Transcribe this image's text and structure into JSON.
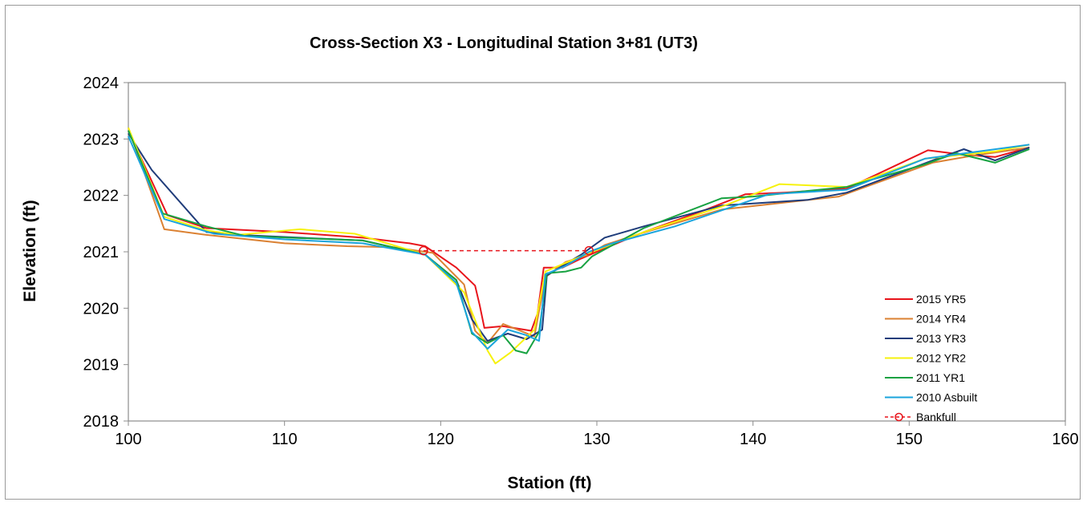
{
  "chart_data": {
    "type": "line",
    "title": "Cross-Section X3 - Longitudinal Station 3+81 (UT3)",
    "xlabel": "Station (ft)",
    "ylabel": "Elevation (ft)",
    "xlim": [
      100,
      160
    ],
    "ylim": [
      2018,
      2024
    ],
    "xticks": [
      "100",
      "110",
      "120",
      "130",
      "140",
      "150",
      "160"
    ],
    "yticks": [
      "2018",
      "2019",
      "2020",
      "2021",
      "2022",
      "2023",
      "2024"
    ],
    "grid": false,
    "legend_position": "bottom-right",
    "series": [
      {
        "name": "2015 YR5",
        "color": "#e8141b",
        "dash": false,
        "x": [
          100,
          102.5,
          105,
          110,
          115,
          118,
          119,
          121,
          122.2,
          122.5,
          122.8,
          124,
          125.8,
          126.2,
          126.6,
          127.8,
          129,
          130,
          133,
          137,
          139.5,
          142,
          146,
          151.2,
          153.5,
          155.5,
          157.7
        ],
        "y": [
          2023.15,
          2021.65,
          2021.42,
          2021.35,
          2021.25,
          2021.15,
          2021.1,
          2020.72,
          2020.4,
          2020.05,
          2019.65,
          2019.68,
          2019.6,
          2019.9,
          2020.72,
          2020.72,
          2020.88,
          2021.0,
          2021.35,
          2021.75,
          2022.02,
          2022.05,
          2022.12,
          2022.8,
          2022.72,
          2022.68,
          2022.85
        ]
      },
      {
        "name": "2014 YR4",
        "color": "#db8132",
        "dash": false,
        "x": [
          100,
          102.3,
          105,
          110,
          114,
          117,
          119.5,
          121.5,
          122.2,
          123,
          124,
          126,
          126.7,
          128,
          129.5,
          130.5,
          132.5,
          138,
          145.5,
          151.5,
          154,
          157.7
        ],
        "y": [
          2023.2,
          2021.4,
          2021.3,
          2021.15,
          2021.1,
          2021.08,
          2020.98,
          2020.42,
          2019.6,
          2019.38,
          2019.72,
          2019.5,
          2020.55,
          2020.82,
          2020.95,
          2021.12,
          2021.3,
          2021.75,
          2021.98,
          2022.58,
          2022.7,
          2022.85
        ]
      },
      {
        "name": "2013 YR3",
        "color": "#1f3c7a",
        "dash": false,
        "x": [
          100,
          101.5,
          105,
          107,
          115,
          119,
          121,
          122,
          123,
          124.3,
          125.5,
          126.5,
          126.8,
          129,
          130.5,
          133,
          138,
          143.5,
          146,
          151.5,
          153.5,
          155.5,
          157.7
        ],
        "y": [
          2023.1,
          2022.45,
          2021.35,
          2021.3,
          2021.2,
          2020.95,
          2020.5,
          2019.8,
          2019.42,
          2019.55,
          2019.45,
          2019.62,
          2020.58,
          2020.95,
          2021.25,
          2021.45,
          2021.82,
          2021.92,
          2022.05,
          2022.62,
          2022.82,
          2022.62,
          2022.85
        ]
      },
      {
        "name": "2012 YR2",
        "color": "#f6f20d",
        "dash": false,
        "x": [
          100,
          102.3,
          105,
          107,
          111,
          114.5,
          119,
          121.5,
          122.3,
          123,
          123.5,
          124.5,
          126,
          126.7,
          129.5,
          133,
          138,
          141.7,
          146,
          151,
          155.5,
          157.7
        ],
        "y": [
          2023.2,
          2021.62,
          2021.38,
          2021.3,
          2021.4,
          2021.32,
          2020.95,
          2020.28,
          2019.72,
          2019.25,
          2019.02,
          2019.22,
          2019.62,
          2020.65,
          2020.98,
          2021.35,
          2021.8,
          2022.2,
          2022.15,
          2022.65,
          2022.78,
          2022.9
        ]
      },
      {
        "name": "2011 YR1",
        "color": "#17a241",
        "dash": false,
        "x": [
          100,
          102.2,
          105,
          107.5,
          115,
          119,
          121,
          122,
          123,
          124,
          124.8,
          125.5,
          126.3,
          126.8,
          128,
          129,
          129.7,
          133,
          138,
          140,
          146,
          151,
          153,
          155.5,
          157.7
        ],
        "y": [
          2023.15,
          2021.68,
          2021.45,
          2021.28,
          2021.2,
          2020.95,
          2020.5,
          2019.55,
          2019.38,
          2019.52,
          2019.25,
          2019.2,
          2019.58,
          2020.62,
          2020.65,
          2020.72,
          2020.92,
          2021.42,
          2021.95,
          2021.98,
          2022.15,
          2022.55,
          2022.75,
          2022.58,
          2022.82
        ]
      },
      {
        "name": "2010 Asbuilt",
        "color": "#1aa4dc",
        "dash": false,
        "x": [
          100,
          102.3,
          105.5,
          110,
          115,
          119,
          121,
          122,
          123,
          124.3,
          125.5,
          126.3,
          126.7,
          128,
          129.5,
          131,
          135,
          141,
          146,
          151,
          157.7
        ],
        "y": [
          2023.05,
          2021.58,
          2021.32,
          2021.22,
          2021.15,
          2020.95,
          2020.45,
          2019.58,
          2019.28,
          2019.62,
          2019.52,
          2019.42,
          2020.6,
          2020.75,
          2021.0,
          2021.15,
          2021.45,
          2022.02,
          2022.1,
          2022.65,
          2022.9
        ]
      },
      {
        "name": "Bankfull",
        "color": "#e8141b",
        "dash": true,
        "marker": "circle",
        "x": [
          118.9,
          129.5
        ],
        "y": [
          2021.02,
          2021.02
        ]
      }
    ]
  }
}
